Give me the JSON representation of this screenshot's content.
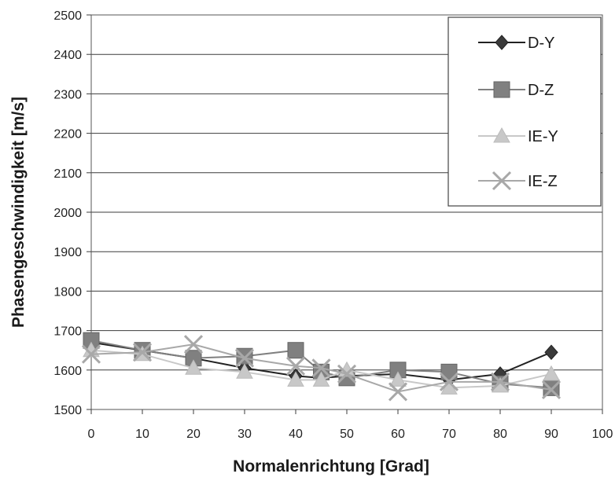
{
  "chart_data": {
    "type": "line",
    "title": "",
    "xlabel": "Normalenrichtung [Grad]",
    "ylabel": "Phasengeschwindigkeit [m/s]",
    "xlim": [
      0,
      100
    ],
    "ylim": [
      1500,
      2500
    ],
    "xticks": [
      "0",
      "10",
      "20",
      "30",
      "40",
      "50",
      "60",
      "70",
      "80",
      "90",
      "100"
    ],
    "yticks": [
      "1500",
      "1600",
      "1700",
      "1800",
      "1900",
      "2000",
      "2100",
      "2200",
      "2300",
      "2400",
      "2500"
    ],
    "grid": "horizontal",
    "legend_position": "top-right",
    "series": [
      {
        "name": "D-Y",
        "marker": "diamond",
        "color": "#3a3a3a",
        "x": [
          0,
          10,
          20,
          30,
          40,
          45,
          50,
          60,
          70,
          80,
          90
        ],
        "y": [
          1670,
          1650,
          1630,
          1605,
          1585,
          1580,
          1585,
          1590,
          1575,
          1590,
          1645
        ]
      },
      {
        "name": "D-Z",
        "marker": "square",
        "color": "#808080",
        "x": [
          0,
          10,
          20,
          30,
          40,
          45,
          50,
          60,
          70,
          80,
          90
        ],
        "y": [
          1675,
          1650,
          1630,
          1635,
          1650,
          1595,
          1580,
          1600,
          1595,
          1565,
          1555
        ]
      },
      {
        "name": "IE-Y",
        "marker": "triangle",
        "color": "#c8c8c8",
        "x": [
          0,
          10,
          20,
          30,
          40,
          45,
          50,
          60,
          70,
          80,
          90
        ],
        "y": [
          1650,
          1640,
          1605,
          1595,
          1575,
          1575,
          1600,
          1575,
          1555,
          1560,
          1590
        ]
      },
      {
        "name": "IE-Z",
        "marker": "x",
        "color": "#a8a8a8",
        "x": [
          0,
          10,
          20,
          30,
          40,
          45,
          50,
          60,
          70,
          80,
          90
        ],
        "y": [
          1640,
          1645,
          1665,
          1630,
          1610,
          1605,
          1590,
          1545,
          1570,
          1570,
          1550
        ]
      }
    ]
  }
}
